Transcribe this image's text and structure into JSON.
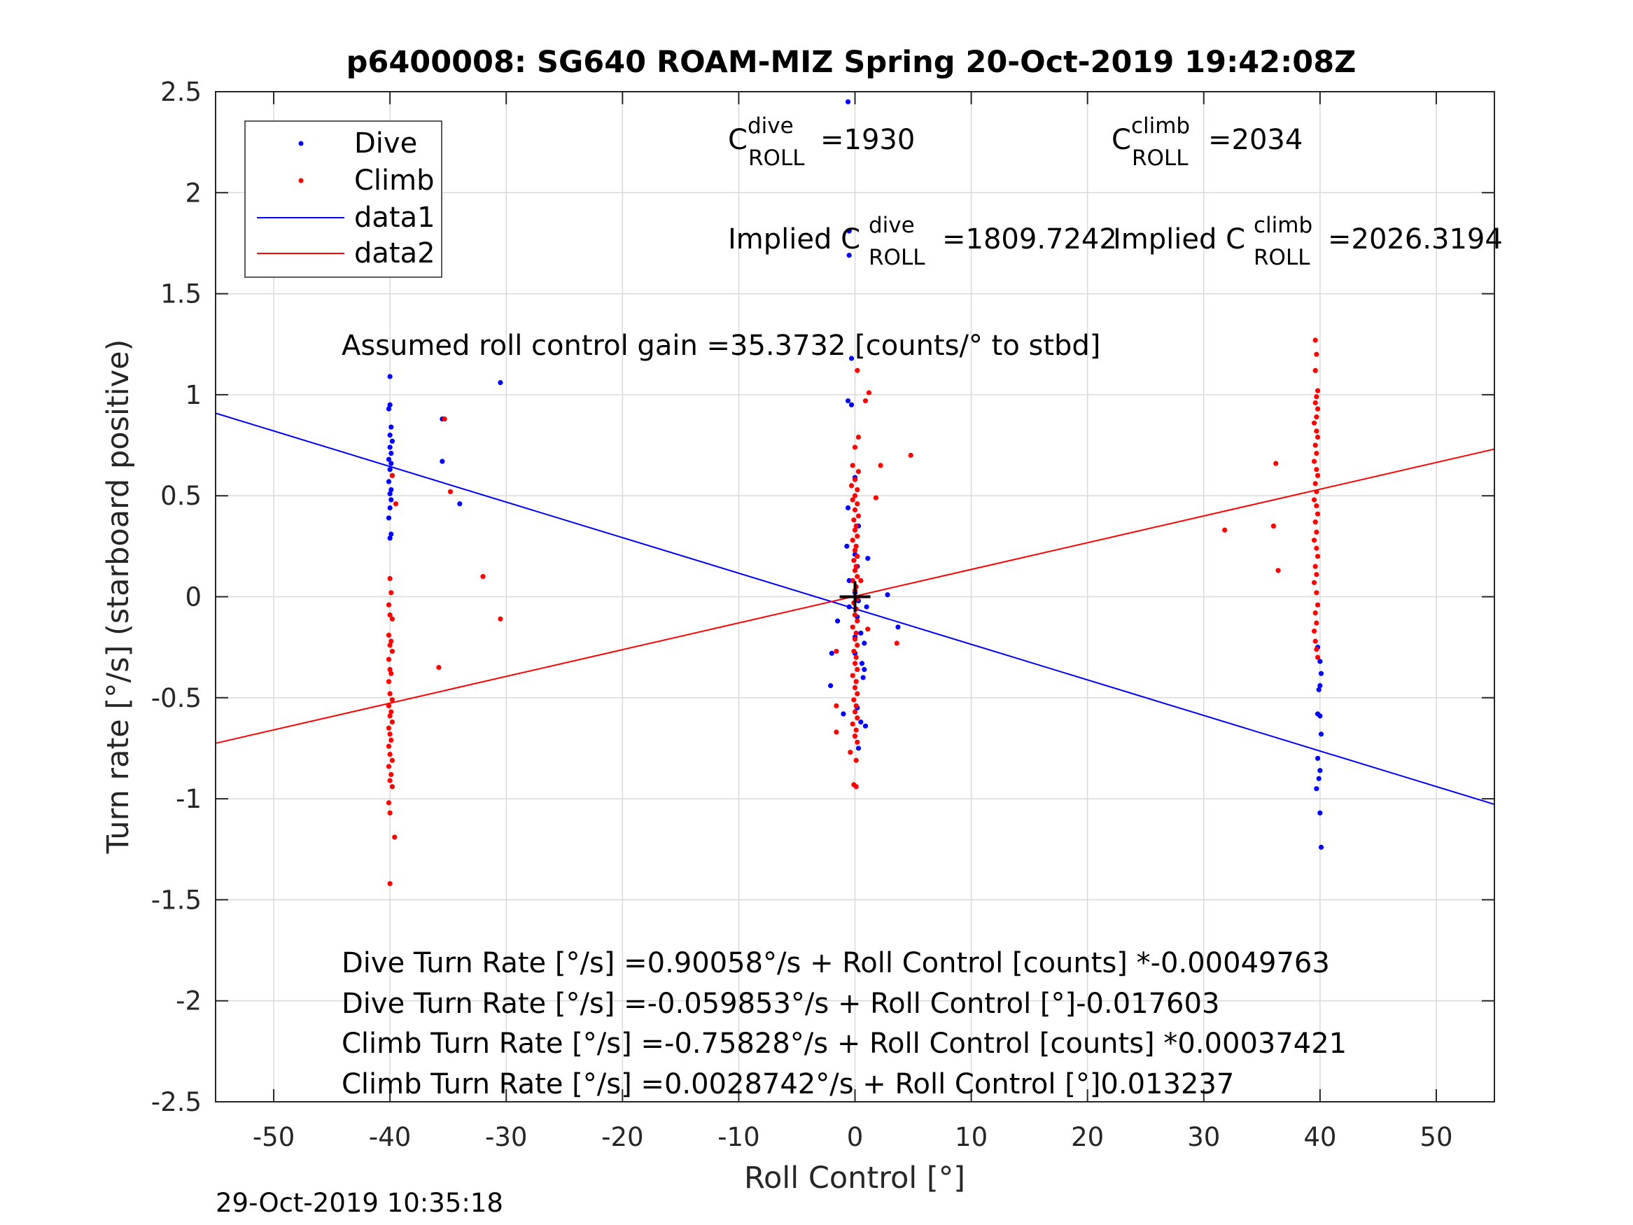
{
  "chart_data": {
    "type": "scatter",
    "title": "p6400008: SG640 ROAM-MIZ Spring 20-Oct-2019 19:42:08Z",
    "xlabel": "Roll Control [°]",
    "ylabel": "Turn rate [°/s] (starboard positive)",
    "xlim": [
      -55,
      55
    ],
    "ylim": [
      -2.5,
      2.5
    ],
    "xticks": [
      -50,
      -40,
      -30,
      -20,
      -10,
      0,
      10,
      20,
      30,
      40,
      50
    ],
    "xtick_labels": [
      "-50",
      "-40",
      "-30",
      "-20",
      "-10",
      "0",
      "10",
      "20",
      "30",
      "40",
      "50"
    ],
    "yticks": [
      -2.5,
      -2,
      -1.5,
      -1,
      -0.5,
      0,
      0.5,
      1,
      1.5,
      2,
      2.5
    ],
    "ytick_labels": [
      "-2.5",
      "-2",
      "-1.5",
      "-1",
      "-0.5",
      "0",
      "0.5",
      "1",
      "1.5",
      "2",
      "2.5"
    ],
    "grid": true,
    "legend_position": "top-left",
    "legend": [
      {
        "label": "Dive",
        "style": "marker",
        "color": "#0000ff"
      },
      {
        "label": "Climb",
        "style": "marker",
        "color": "#ff0000"
      },
      {
        "label": "data1",
        "style": "line",
        "color": "#0000ff"
      },
      {
        "label": "data2",
        "style": "line",
        "color": "#ff0000"
      }
    ],
    "series": [
      {
        "name": "Dive",
        "color": "#0000ff",
        "points": [
          [
            -40.0,
            1.09
          ],
          [
            -40.0,
            0.95
          ],
          [
            -40.1,
            0.93
          ],
          [
            -39.9,
            0.84
          ],
          [
            -40.0,
            0.8
          ],
          [
            -39.8,
            0.77
          ],
          [
            -40.0,
            0.74
          ],
          [
            -39.9,
            0.71
          ],
          [
            -40.1,
            0.68
          ],
          [
            -39.9,
            0.66
          ],
          [
            -40.0,
            0.63
          ],
          [
            -39.8,
            0.6
          ],
          [
            -40.1,
            0.57
          ],
          [
            -39.9,
            0.53
          ],
          [
            -40.0,
            0.51
          ],
          [
            -39.9,
            0.48
          ],
          [
            -40.0,
            0.44
          ],
          [
            -40.1,
            0.39
          ],
          [
            -39.9,
            0.31
          ],
          [
            -40.0,
            0.29
          ],
          [
            -35.5,
            0.88
          ],
          [
            -35.5,
            0.67
          ],
          [
            -34.0,
            0.46
          ],
          [
            -30.5,
            1.06
          ],
          [
            -0.6,
            2.45
          ],
          [
            -0.5,
            1.81
          ],
          [
            -0.5,
            1.69
          ],
          [
            -0.3,
            1.18
          ],
          [
            -0.6,
            0.97
          ],
          [
            -0.3,
            0.95
          ],
          [
            0.0,
            0.59
          ],
          [
            -0.6,
            0.44
          ],
          [
            0.3,
            0.35
          ],
          [
            -0.7,
            0.25
          ],
          [
            0.0,
            0.21
          ],
          [
            0.2,
            0.15
          ],
          [
            -0.5,
            0.08
          ],
          [
            0.0,
            0.02
          ],
          [
            0.3,
            -0.02
          ],
          [
            -0.5,
            -0.05
          ],
          [
            0.2,
            -0.1
          ],
          [
            0.5,
            -0.18
          ],
          [
            -1.5,
            -0.12
          ],
          [
            0.0,
            -0.2
          ],
          [
            0.8,
            -0.23
          ],
          [
            0.0,
            -0.28
          ],
          [
            0.6,
            -0.33
          ],
          [
            -2.0,
            -0.28
          ],
          [
            0.8,
            -0.36
          ],
          [
            0.0,
            -0.45
          ],
          [
            0.7,
            -0.4
          ],
          [
            -2.1,
            -0.44
          ],
          [
            0.2,
            -0.55
          ],
          [
            -1.0,
            -0.58
          ],
          [
            0.5,
            -0.62
          ],
          [
            0.9,
            -0.64
          ],
          [
            0.0,
            -0.69
          ],
          [
            0.3,
            -0.75
          ],
          [
            2.8,
            0.01
          ],
          [
            3.7,
            -0.15
          ],
          [
            1.1,
            0.19
          ],
          [
            1.0,
            -0.05
          ],
          [
            39.8,
            -0.25
          ],
          [
            40.0,
            -0.32
          ],
          [
            40.1,
            -0.38
          ],
          [
            40.0,
            -0.44
          ],
          [
            39.9,
            -0.46
          ],
          [
            39.8,
            -0.58
          ],
          [
            40.0,
            -0.59
          ],
          [
            40.1,
            -0.68
          ],
          [
            39.8,
            -0.8
          ],
          [
            40.0,
            -0.86
          ],
          [
            39.9,
            -0.9
          ],
          [
            39.7,
            -0.95
          ],
          [
            40.0,
            -1.07
          ],
          [
            40.1,
            -1.24
          ]
        ]
      },
      {
        "name": "Climb",
        "color": "#ff0000",
        "points": [
          [
            -40.0,
            0.09
          ],
          [
            -39.9,
            0.02
          ],
          [
            -40.1,
            -0.04
          ],
          [
            -40.0,
            -0.09
          ],
          [
            -39.8,
            -0.11
          ],
          [
            -40.1,
            -0.19
          ],
          [
            -39.9,
            -0.22
          ],
          [
            -40.0,
            -0.24
          ],
          [
            -39.8,
            -0.27
          ],
          [
            -40.1,
            -0.31
          ],
          [
            -40.0,
            -0.36
          ],
          [
            -39.9,
            -0.38
          ],
          [
            -40.1,
            -0.42
          ],
          [
            -40.0,
            -0.48
          ],
          [
            -39.8,
            -0.51
          ],
          [
            -40.1,
            -0.54
          ],
          [
            -39.9,
            -0.57
          ],
          [
            -40.0,
            -0.59
          ],
          [
            -39.8,
            -0.62
          ],
          [
            -40.1,
            -0.65
          ],
          [
            -40.0,
            -0.68
          ],
          [
            -39.9,
            -0.71
          ],
          [
            -40.1,
            -0.74
          ],
          [
            -40.0,
            -0.78
          ],
          [
            -39.8,
            -0.81
          ],
          [
            -40.1,
            -0.84
          ],
          [
            -39.9,
            -0.88
          ],
          [
            -40.0,
            -0.91
          ],
          [
            -39.8,
            -0.94
          ],
          [
            -40.1,
            -1.02
          ],
          [
            -40.0,
            -1.07
          ],
          [
            -39.6,
            -1.19
          ],
          [
            -40.0,
            -1.42
          ],
          [
            -39.8,
            0.6
          ],
          [
            -39.5,
            0.46
          ],
          [
            -35.3,
            0.88
          ],
          [
            -34.8,
            0.52
          ],
          [
            -32.0,
            0.1
          ],
          [
            -30.5,
            -0.11
          ],
          [
            -35.8,
            -0.35
          ],
          [
            0.2,
            1.12
          ],
          [
            1.2,
            1.01
          ],
          [
            0.9,
            0.97
          ],
          [
            0.3,
            0.79
          ],
          [
            0.0,
            0.74
          ],
          [
            -0.2,
            0.65
          ],
          [
            0.3,
            0.62
          ],
          [
            0.0,
            0.58
          ],
          [
            -0.3,
            0.55
          ],
          [
            0.2,
            0.53
          ],
          [
            0.0,
            0.5
          ],
          [
            -0.2,
            0.48
          ],
          [
            0.2,
            0.46
          ],
          [
            0.0,
            0.43
          ],
          [
            0.3,
            0.4
          ],
          [
            -0.1,
            0.38
          ],
          [
            0.1,
            0.35
          ],
          [
            0.0,
            0.33
          ],
          [
            0.2,
            0.3
          ],
          [
            -0.2,
            0.28
          ],
          [
            0.1,
            0.25
          ],
          [
            0.0,
            0.23
          ],
          [
            0.2,
            0.2
          ],
          [
            -0.1,
            0.18
          ],
          [
            0.1,
            0.15
          ],
          [
            0.0,
            0.13
          ],
          [
            0.2,
            0.1
          ],
          [
            -0.2,
            0.08
          ],
          [
            0.1,
            0.05
          ],
          [
            0.0,
            0.03
          ],
          [
            0.2,
            -0.01
          ],
          [
            -0.1,
            -0.03
          ],
          [
            0.1,
            -0.06
          ],
          [
            0.0,
            -0.09
          ],
          [
            0.2,
            -0.12
          ],
          [
            -0.2,
            -0.15
          ],
          [
            0.1,
            -0.18
          ],
          [
            0.0,
            -0.21
          ],
          [
            0.2,
            -0.24
          ],
          [
            -0.1,
            -0.27
          ],
          [
            0.1,
            -0.3
          ],
          [
            0.0,
            -0.33
          ],
          [
            0.2,
            -0.36
          ],
          [
            -0.2,
            -0.39
          ],
          [
            0.1,
            -0.42
          ],
          [
            0.0,
            -0.45
          ],
          [
            0.2,
            -0.48
          ],
          [
            -0.1,
            -0.51
          ],
          [
            0.1,
            -0.54
          ],
          [
            0.0,
            -0.57
          ],
          [
            0.2,
            -0.6
          ],
          [
            -0.2,
            -0.63
          ],
          [
            0.1,
            -0.66
          ],
          [
            0.0,
            -0.69
          ],
          [
            0.2,
            -0.72
          ],
          [
            -0.4,
            -0.77
          ],
          [
            0.1,
            -0.81
          ],
          [
            -0.1,
            -0.93
          ],
          [
            0.1,
            -0.94
          ],
          [
            2.2,
            0.65
          ],
          [
            4.8,
            0.7
          ],
          [
            1.8,
            0.49
          ],
          [
            -1.6,
            -0.27
          ],
          [
            -1.6,
            -0.54
          ],
          [
            -1.6,
            -0.67
          ],
          [
            3.6,
            -0.23
          ],
          [
            1.1,
            -0.16
          ],
          [
            0.5,
            0.08
          ],
          [
            39.6,
            1.27
          ],
          [
            39.7,
            1.2
          ],
          [
            39.6,
            1.12
          ],
          [
            39.8,
            1.02
          ],
          [
            39.7,
            0.99
          ],
          [
            39.6,
            0.96
          ],
          [
            39.8,
            0.93
          ],
          [
            39.7,
            0.89
          ],
          [
            39.5,
            0.86
          ],
          [
            39.7,
            0.82
          ],
          [
            39.8,
            0.79
          ],
          [
            39.6,
            0.75
          ],
          [
            39.7,
            0.71
          ],
          [
            39.5,
            0.67
          ],
          [
            39.7,
            0.63
          ],
          [
            39.8,
            0.6
          ],
          [
            39.6,
            0.56
          ],
          [
            39.7,
            0.52
          ],
          [
            39.5,
            0.48
          ],
          [
            39.7,
            0.45
          ],
          [
            39.8,
            0.41
          ],
          [
            39.6,
            0.37
          ],
          [
            39.7,
            0.32
          ],
          [
            39.5,
            0.28
          ],
          [
            39.7,
            0.24
          ],
          [
            39.8,
            0.2
          ],
          [
            39.6,
            0.15
          ],
          [
            39.7,
            0.11
          ],
          [
            39.5,
            0.07
          ],
          [
            39.7,
            0.02
          ],
          [
            39.8,
            -0.04
          ],
          [
            39.6,
            -0.08
          ],
          [
            39.7,
            -0.13
          ],
          [
            39.5,
            -0.17
          ],
          [
            39.6,
            -0.22
          ],
          [
            39.7,
            -0.26
          ],
          [
            39.8,
            -0.3
          ],
          [
            36.2,
            0.66
          ],
          [
            36.0,
            0.35
          ],
          [
            36.4,
            0.13
          ],
          [
            31.8,
            0.33
          ]
        ]
      },
      {
        "name": "data1",
        "type": "line",
        "color": "#0000ff",
        "x": [
          -55,
          55
        ],
        "y": [
          0.9087,
          -1.0276
        ]
      },
      {
        "name": "data2",
        "type": "line",
        "color": "#ff0000",
        "x": [
          -55,
          55
        ],
        "y": [
          -0.7252,
          0.7309
        ]
      }
    ],
    "annotations": {
      "cdive_prefix": "C",
      "cdive_sup": "dive",
      "cdive_sub": "ROLL",
      "cdive_value": "=1930",
      "cclimb_prefix": "C",
      "cclimb_sup": "climb",
      "cclimb_sub": "ROLL",
      "cclimb_value": "=2034",
      "implied_dive_prefix": "Implied C",
      "implied_dive_sup": "dive",
      "implied_dive_sub": "ROLL",
      "implied_dive_value": "=1809.7242",
      "implied_climb_prefix": "Implied C",
      "implied_climb_sup": "climb",
      "implied_climb_sub": "ROLL",
      "implied_climb_value": "=2026.3194",
      "gain": "Assumed roll control gain =35.3732 [counts/° to stbd]",
      "eq1": "Dive Turn Rate [°/s] =0.90058°/s + Roll Control [counts] *-0.00049763",
      "eq2": "Dive Turn Rate [°/s] =-0.059853°/s + Roll Control [°]-0.017603",
      "eq3": "Climb Turn Rate [°/s] =-0.75828°/s + Roll Control [counts] *0.00037421",
      "eq4": "Climb Turn Rate [°/s] =0.0028742°/s + Roll Control [°]0.013237"
    },
    "marker_origin": [
      0,
      0
    ]
  },
  "footer": {
    "timestamp": "29-Oct-2019 10:35:18"
  }
}
